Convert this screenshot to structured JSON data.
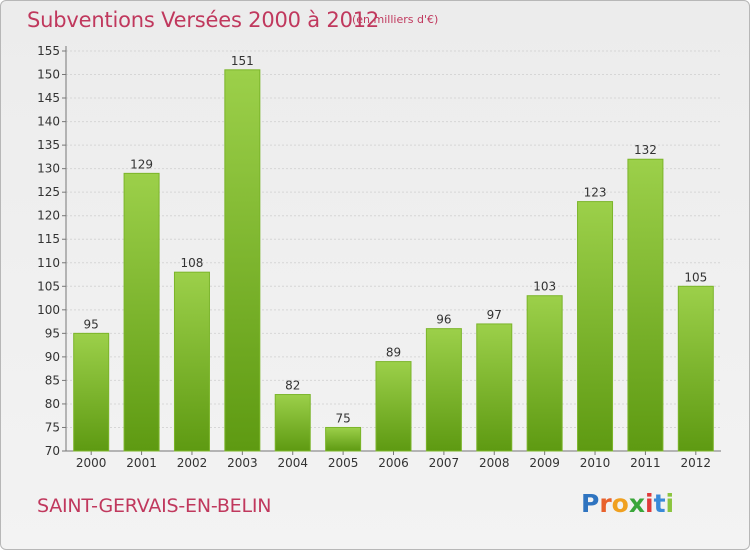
{
  "header": {
    "title": "Subventions Versées 2000 à 2012",
    "subtitle": "(en milliers d'€)"
  },
  "footer": {
    "commune": "SAINT-GERVAIS-EN-BELIN",
    "logo": {
      "letters": [
        "P",
        "r",
        "o",
        "x",
        "i",
        "t",
        "i"
      ],
      "colors": [
        "#2f74c0",
        "#e8612c",
        "#f0a020",
        "#3aa63a",
        "#e03a3a",
        "#3a8ad8",
        "#8bc53f"
      ]
    }
  },
  "colors": {
    "bar_top": "#9cd04a",
    "bar_bottom": "#5e9a12",
    "title": "#c0385d"
  },
  "chart_data": {
    "type": "bar",
    "title": "Subventions Versées 2000 à 2012",
    "subtitle": "(en milliers d'€)",
    "categories": [
      "2000",
      "2001",
      "2002",
      "2003",
      "2004",
      "2005",
      "2006",
      "2007",
      "2008",
      "2009",
      "2010",
      "2011",
      "2012"
    ],
    "values": [
      95,
      129,
      108,
      151,
      82,
      75,
      89,
      96,
      97,
      103,
      123,
      132,
      105
    ],
    "ylim": [
      70,
      155
    ],
    "ytick_step": 5,
    "grid": true
  }
}
